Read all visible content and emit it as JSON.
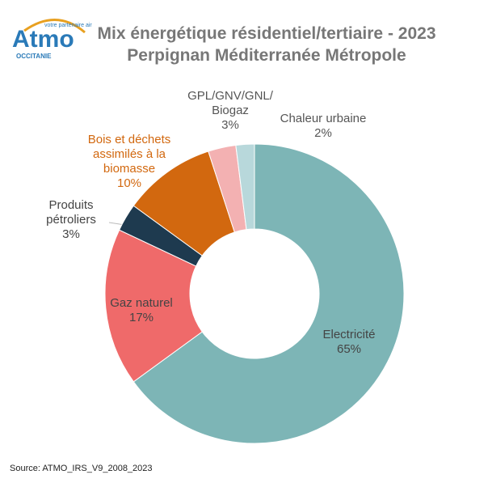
{
  "logo": {
    "name": "Atmo",
    "tagline": "votre partenaire air",
    "region": "OCCITANIE"
  },
  "chart_data": {
    "type": "donut",
    "title": "Mix énergétique résidentiel/tertiaire - 2023",
    "subtitle": "Perpignan Méditerranée Métropole",
    "categories": [
      "Electricité",
      "Gaz naturel",
      "Produits\npétroliers",
      "Bois et déchets\nassimilés à la\nbiomasse",
      "GPL/GNV/GNL/\nBiogaz",
      "Chaleur urbaine"
    ],
    "values": [
      65,
      17,
      3,
      10,
      3,
      2
    ],
    "value_labels": [
      "65%",
      "17%",
      "3%",
      "10%",
      "3%",
      "2%"
    ],
    "colors": [
      "#7db5b6",
      "#ef6a6a",
      "#1e3a4f",
      "#d2680f",
      "#f3b1b2",
      "#b8d8db"
    ],
    "label_colors": [
      "#444444",
      "#444444",
      "#444444",
      "#d2680f",
      "#555555",
      "#555555"
    ]
  },
  "source": "Source: ATMO_IRS_V9_2008_2023"
}
